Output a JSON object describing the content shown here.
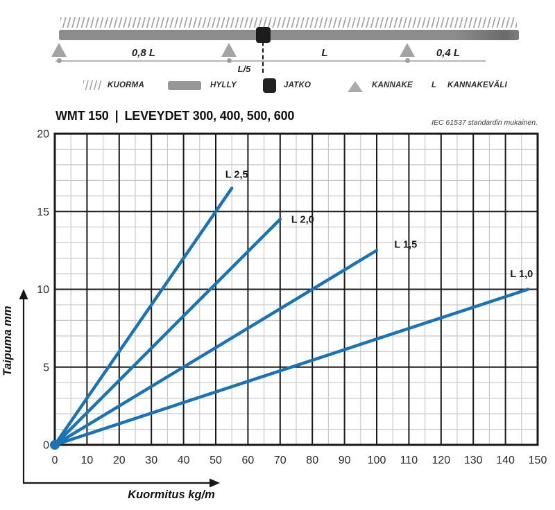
{
  "schematic": {
    "span_left": "0,8 L",
    "span_middle": "L",
    "span_right": "0,4 L",
    "joint_offset": "L/5"
  },
  "legend": {
    "items": [
      {
        "icon": "load-hatch-icon",
        "label": "KUORMA"
      },
      {
        "icon": "shelf-bar-icon",
        "label": "HYLLY"
      },
      {
        "icon": "joint-square-icon",
        "label": "JATKO"
      },
      {
        "icon": "support-triangle-icon",
        "label": "KANNAKE"
      },
      {
        "icon": "span-letter",
        "symbol": "L",
        "label": "KANNAKEVÄLI"
      }
    ]
  },
  "header": {
    "model": "WMT 150",
    "separator": "|",
    "subtitle": "LEVEYDET 300, 400, 500, 600",
    "standard_note": "IEC 61537 standardin mukainen."
  },
  "colors": {
    "line_blue": "#1a73b5",
    "major_grid": "#1a1a1a",
    "minor_grid": "#c9c9c9",
    "axis_black": "#161616"
  },
  "chart_data": {
    "type": "line",
    "title": "WMT 150 deflection curves",
    "xlabel": "Kuormitus kg/m",
    "ylabel": "Taipuma mm",
    "xlim": [
      0,
      150
    ],
    "ylim": [
      0,
      20
    ],
    "x_ticks": [
      0,
      10,
      20,
      30,
      40,
      50,
      60,
      70,
      80,
      90,
      100,
      110,
      120,
      130,
      140,
      150
    ],
    "y_ticks": [
      0,
      5,
      10,
      15,
      20
    ],
    "x_minor_step": 5,
    "y_minor_step": 1,
    "grid": true,
    "legend_position": "inline-labels",
    "line_color": "#1a73b5",
    "origin_marker": true,
    "series": [
      {
        "name": "L 2,5",
        "x": [
          0,
          55
        ],
        "y": [
          0,
          16.5
        ],
        "label_at": [
          56.5,
          17.4
        ]
      },
      {
        "name": "L 2,0",
        "x": [
          0,
          70
        ],
        "y": [
          0,
          14.5
        ],
        "label_at": [
          77,
          14.5
        ]
      },
      {
        "name": "L 1,5",
        "x": [
          0,
          100
        ],
        "y": [
          0,
          12.5
        ],
        "label_at": [
          109,
          12.9
        ]
      },
      {
        "name": "L 1,0",
        "x": [
          0,
          147
        ],
        "y": [
          0,
          10
        ],
        "label_at": [
          145,
          11.0
        ]
      }
    ]
  }
}
